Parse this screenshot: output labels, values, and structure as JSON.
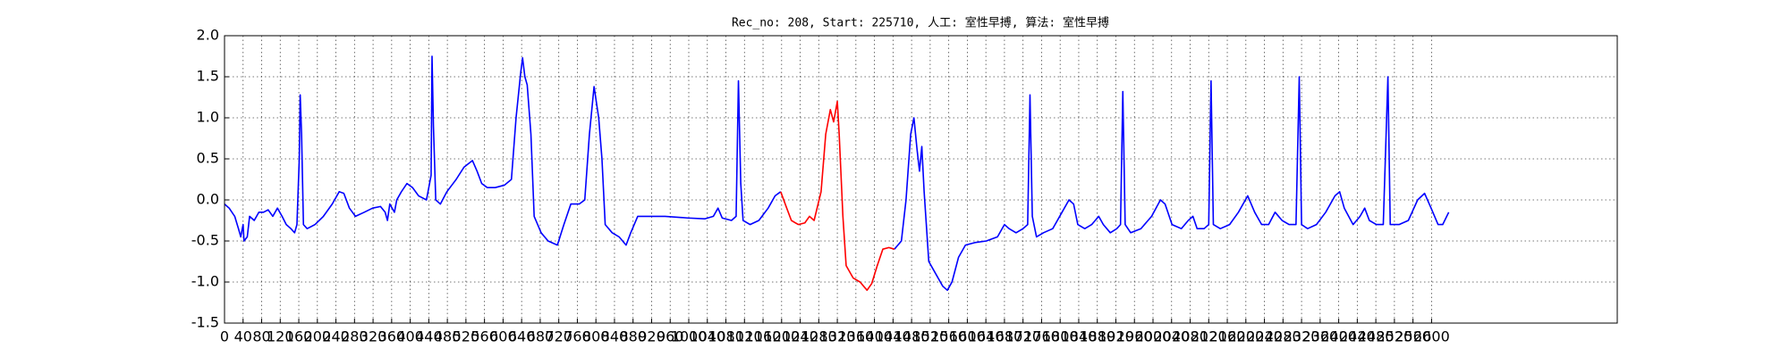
{
  "chart_data": {
    "type": "line",
    "title": "Rec_no: 208, Start: 225710, 人工: 室性早搏, 算法: 室性早搏",
    "xlim": [
      0,
      3000
    ],
    "ylim": [
      -1.5,
      2.0
    ],
    "xticks": [
      0,
      40,
      80,
      120,
      160,
      200,
      240,
      280,
      320,
      360,
      400,
      440,
      480,
      520,
      560,
      600,
      640,
      680,
      720,
      760,
      800,
      840,
      880,
      920,
      960,
      1000,
      1040,
      1080,
      1120,
      1160,
      1200,
      1240,
      1280,
      1320,
      1360,
      1400,
      1440,
      1480,
      1520,
      1560,
      1600,
      1640,
      1680,
      1720,
      1760,
      1800,
      1840,
      1880,
      1920,
      1960,
      2000,
      2040,
      2080,
      2120,
      2160,
      2200,
      2240,
      2280,
      2320,
      2360,
      2400,
      2440,
      2480,
      2520,
      2560,
      2600
    ],
    "yticks": [
      {
        "value": 2,
        "label": "2.0"
      },
      1.5,
      {
        "value": 1,
        "label": "1.0"
      },
      0.5,
      {
        "value": 0,
        "label": "0.0"
      },
      -0.5,
      {
        "value": -1,
        "label": "-1.0"
      },
      -1.5
    ],
    "grid": true,
    "series": [
      {
        "color": "#0000ff",
        "x": [
          0,
          10,
          22,
          30,
          35,
          40,
          42,
          49,
          54,
          64,
          74,
          84,
          94,
          104,
          114,
          124,
          133,
          143,
          151,
          156,
          161,
          163,
          166,
          170,
          178,
          195,
          213,
          232,
          247,
          257,
          269,
          282,
          301,
          319,
          336,
          346,
          351,
          356,
          366,
          371,
          381,
          393,
          405,
          418,
          435,
          445,
          447,
          450,
          455,
          465,
          479,
          499,
          516,
          534,
          544,
          554,
          566,
          583,
          603,
          618,
          628,
          638,
          642,
          647,
          652,
          660,
          667,
          682,
          697,
          717,
          731,
          746,
          764,
          776,
          786,
          796,
          806,
          813,
          820,
          835,
          850,
          865,
          875,
          890,
          912,
          949,
          998,
          1035,
          1053,
          1063,
          1072,
          1092,
          1102,
          1107,
          1112,
          1117,
          1132,
          1151,
          1171,
          1186,
          1198,
          1320,
          1443,
          1458,
          1468,
          1478,
          1485,
          1492,
          1497,
          1502,
          1507,
          1517,
          1532,
          1547,
          1557,
          1567,
          1581,
          1596,
          1616,
          1641,
          1665,
          1680,
          1690,
          1705,
          1720,
          1730,
          1735,
          1740,
          1749,
          1764,
          1784,
          1804,
          1819,
          1829,
          1838,
          1853,
          1868,
          1883,
          1893,
          1908,
          1922,
          1930,
          1935,
          1940,
          1952,
          1974,
          1997,
          2016,
          2026,
          2041,
          2061,
          2076,
          2086,
          2095,
          2110,
          2120,
          2125,
          2130,
          2145,
          2165,
          2184,
          2204,
          2219,
          2234,
          2249,
          2263,
          2278,
          2293,
          2308,
          2315,
          2320,
          2333,
          2352,
          2372,
          2392,
          2402,
          2412,
          2431,
          2446,
          2456,
          2466,
          2481,
          2496,
          2506,
          2511,
          2530,
          2550,
          2570,
          2585,
          2599,
          2614,
          2624,
          2637
        ],
        "values": [
          -0.05,
          -0.1,
          -0.2,
          -0.35,
          -0.45,
          -0.3,
          -0.5,
          -0.45,
          -0.2,
          -0.25,
          -0.15,
          -0.15,
          -0.12,
          -0.2,
          -0.1,
          -0.2,
          -0.3,
          -0.35,
          -0.4,
          -0.3,
          0.5,
          1.28,
          0.8,
          -0.3,
          -0.35,
          -0.3,
          -0.2,
          -0.05,
          0.1,
          0.08,
          -0.1,
          -0.2,
          -0.15,
          -0.1,
          -0.08,
          -0.15,
          -0.25,
          -0.05,
          -0.15,
          0.0,
          0.1,
          0.2,
          0.15,
          0.05,
          0.0,
          0.3,
          1.75,
          0.9,
          0.0,
          -0.05,
          0.1,
          0.25,
          0.4,
          0.48,
          0.35,
          0.2,
          0.15,
          0.15,
          0.18,
          0.25,
          1.0,
          1.55,
          1.73,
          1.5,
          1.4,
          0.8,
          -0.2,
          -0.4,
          -0.5,
          -0.55,
          -0.3,
          -0.05,
          -0.05,
          0.0,
          0.8,
          1.38,
          1.0,
          0.5,
          -0.3,
          -0.4,
          -0.45,
          -0.55,
          -0.4,
          -0.2,
          -0.2,
          -0.2,
          -0.22,
          -0.23,
          -0.2,
          -0.1,
          -0.22,
          -0.25,
          -0.2,
          1.45,
          0.2,
          -0.25,
          -0.3,
          -0.25,
          -0.1,
          0.05,
          0.1,
          null,
          -0.6,
          -0.5,
          0.0,
          0.8,
          1.0,
          0.6,
          0.35,
          0.65,
          0.1,
          -0.75,
          -0.9,
          -1.05,
          -1.1,
          -1.0,
          -0.7,
          -0.55,
          -0.52,
          -0.5,
          -0.45,
          -0.3,
          -0.35,
          -0.4,
          -0.35,
          -0.3,
          1.28,
          -0.2,
          -0.45,
          -0.4,
          -0.35,
          -0.15,
          0.0,
          -0.05,
          -0.3,
          -0.35,
          -0.3,
          -0.2,
          -0.3,
          -0.4,
          -0.35,
          -0.3,
          1.32,
          -0.3,
          -0.4,
          -0.35,
          -0.2,
          0.0,
          -0.05,
          -0.3,
          -0.35,
          -0.25,
          -0.2,
          -0.35,
          -0.35,
          -0.3,
          1.45,
          -0.3,
          -0.35,
          -0.3,
          -0.15,
          0.05,
          -0.15,
          -0.3,
          -0.3,
          -0.15,
          -0.25,
          -0.3,
          -0.3,
          1.5,
          -0.3,
          -0.35,
          -0.3,
          -0.15,
          0.05,
          0.1,
          -0.1,
          -0.3,
          -0.2,
          -0.1,
          -0.25,
          -0.3,
          -0.3,
          1.5,
          -0.3,
          -0.3,
          -0.25,
          0.0,
          0.08,
          -0.1,
          -0.3,
          -0.3,
          -0.15
        ]
      },
      {
        "color": "#ff0000",
        "x": [
          1198,
          1211,
          1221,
          1236,
          1250,
          1260,
          1270,
          1285,
          1295,
          1305,
          1312,
          1320,
          1324,
          1332,
          1339,
          1354,
          1369,
          1384,
          1394,
          1406,
          1418,
          1431,
          1443
        ],
        "values": [
          0.1,
          -0.1,
          -0.25,
          -0.3,
          -0.28,
          -0.2,
          -0.25,
          0.1,
          0.8,
          1.1,
          0.95,
          1.2,
          0.8,
          -0.2,
          -0.8,
          -0.95,
          -1.0,
          -1.1,
          -1.02,
          -0.8,
          -0.6,
          -0.58,
          -0.6
        ]
      }
    ]
  }
}
